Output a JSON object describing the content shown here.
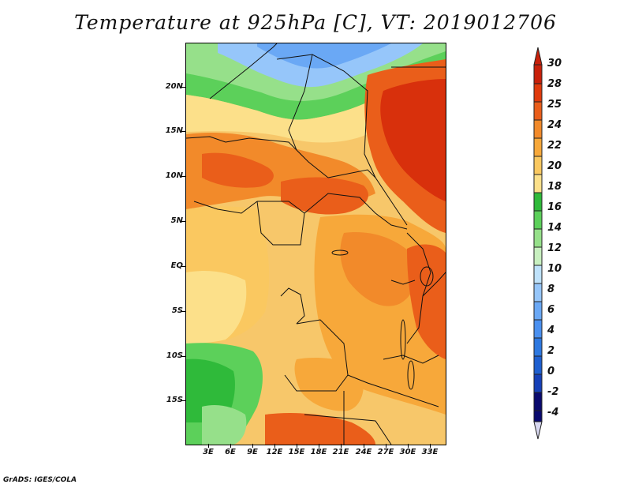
{
  "title": "Temperature at 925hPa [C], VT: 2019012706",
  "footer": "GrADS: IGES/COLA",
  "axes": {
    "latitude_labels": [
      "20N",
      "15N",
      "10N",
      "5N",
      "EQ",
      "5S",
      "10S",
      "15S"
    ],
    "longitude_labels": [
      "3E",
      "6E",
      "9E",
      "12E",
      "15E",
      "18E",
      "21E",
      "24E",
      "27E",
      "30E",
      "33E"
    ]
  },
  "colorbar": {
    "labels": [
      "30",
      "28",
      "25",
      "24",
      "22",
      "20",
      "18",
      "16",
      "14",
      "12",
      "10",
      "8",
      "6",
      "4",
      "2",
      "0",
      "-2",
      "-4"
    ],
    "colors": [
      "#d8d8f0",
      "#0a0a6e",
      "#1540b8",
      "#1e5fd0",
      "#2d78e0",
      "#4a90f0",
      "#6aa8f5",
      "#96c6fa",
      "#bfe2fb",
      "#c8f0c0",
      "#96e08a",
      "#5cd05a",
      "#2fba3a",
      "#fff5b0",
      "#fce08a",
      "#fac860",
      "#f7a83a",
      "#f28a2a",
      "#ea5e1a",
      "#e03a0c",
      "#c8200a"
    ]
  },
  "regions": {
    "cold_north": "cold-region-north",
    "warm_east": "hot-region-east"
  }
}
